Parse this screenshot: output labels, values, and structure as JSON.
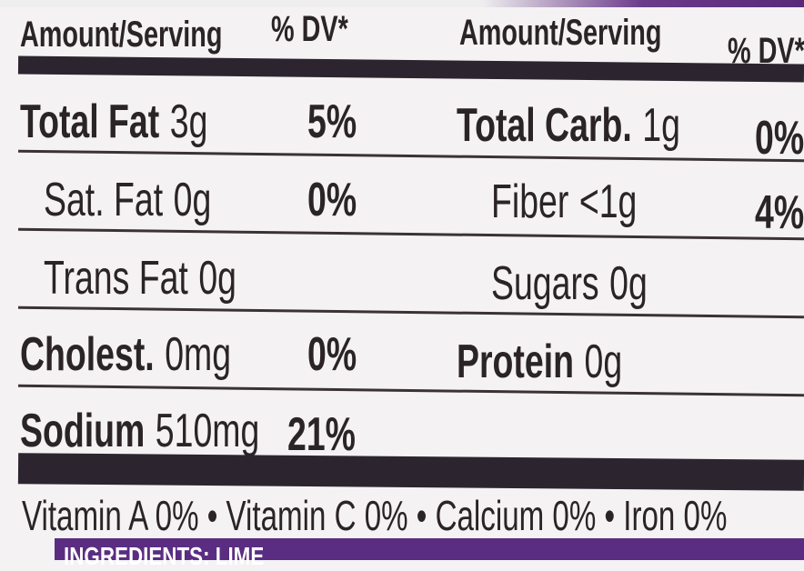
{
  "header": {
    "left_amount": "Amount/Serving",
    "left_dv": "% DV*",
    "right_amount": "Amount/Serving",
    "right_dv": "% DV*"
  },
  "left_rows": [
    {
      "name": "Total Fat",
      "amount": "3g",
      "dv": "5%",
      "bold": true
    },
    {
      "name": "Sat. Fat",
      "amount": "0g",
      "dv": "0%",
      "bold": false
    },
    {
      "name": "Trans Fat",
      "amount": "0g",
      "dv": "",
      "bold": false
    },
    {
      "name": "Cholest.",
      "amount": "0mg",
      "dv": "0%",
      "bold": true
    },
    {
      "name": "Sodium",
      "amount": "510mg",
      "dv": "21%",
      "bold": true
    }
  ],
  "right_rows": [
    {
      "name": "Total Carb.",
      "amount": "1g",
      "dv": "0%",
      "bold": true
    },
    {
      "name": "Fiber",
      "amount": "<1g",
      "dv": "4%",
      "bold": false
    },
    {
      "name": "Sugars",
      "amount": "0g",
      "dv": "",
      "bold": false
    },
    {
      "name": "Protein",
      "amount": "0g",
      "dv": "",
      "bold": true
    }
  ],
  "vitamins": "Vitamin A 0% • Vitamin C 0% • Calcium 0% • Iron 0%",
  "ingredients_partial": "INGREDIENTS: LIME",
  "colors": {
    "ink": "#2b2427",
    "band": "#5b2d82"
  }
}
